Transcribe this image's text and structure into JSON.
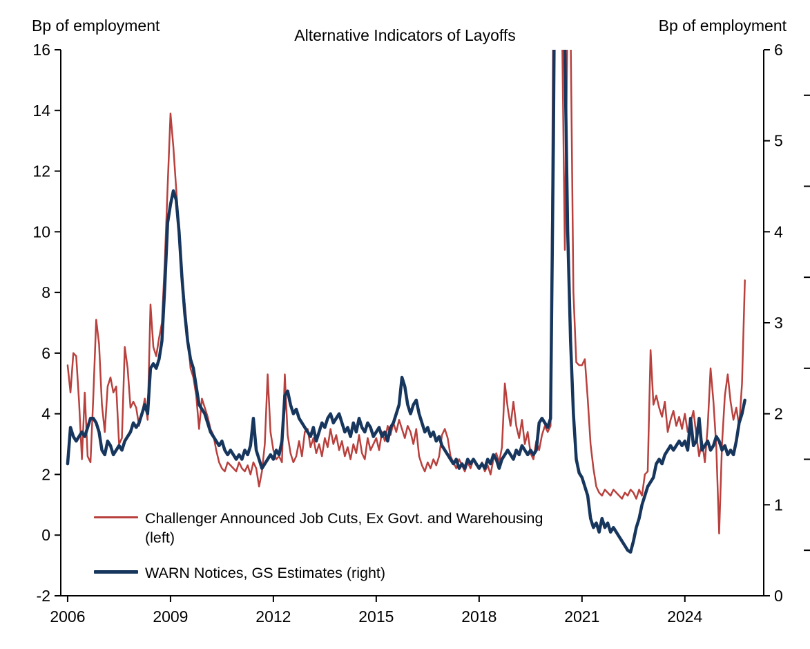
{
  "title": "Alternative Indicators of Layoffs",
  "left_axis_units": "Bp of employment",
  "right_axis_units": "Bp of employment",
  "chart_data": {
    "type": "line",
    "title": "Alternative Indicators of Layoffs",
    "grid": false,
    "legend_position": "lower-left",
    "xlim": [
      2005.8,
      2026.3
    ],
    "x_ticks": [
      2006,
      2009,
      2012,
      2015,
      2018,
      2021,
      2024
    ],
    "x_start": 2006.0,
    "x_step_years": 0.0833333,
    "left_ylim": [
      -2,
      16
    ],
    "left_yticks": [
      16,
      14,
      12,
      10,
      8,
      6,
      4,
      2,
      0,
      -2
    ],
    "left_axis_label": "Bp of employment",
    "right_ylim": [
      0,
      6
    ],
    "right_yticks": [
      6,
      5,
      4,
      3,
      2,
      1,
      0
    ],
    "right_axis_label": "Bp of employment",
    "right_edge_marks": [
      5.5,
      4.5,
      3.5,
      2.5,
      1.5,
      0.5
    ],
    "series": [
      {
        "name": "Challenger Announced Job Cuts, Ex Govt. and Warehousing (left)",
        "axis": "left",
        "color": "#b8403d",
        "width": 2.5,
        "values": [
          5.6,
          4.7,
          6.0,
          5.9,
          4.4,
          2.5,
          4.7,
          2.6,
          2.4,
          4.6,
          7.1,
          6.3,
          4.3,
          3.4,
          4.9,
          5.2,
          4.7,
          4.9,
          3.0,
          3.2,
          6.2,
          5.5,
          4.2,
          4.4,
          4.2,
          3.6,
          4.0,
          4.5,
          3.8,
          7.6,
          6.2,
          5.9,
          6.5,
          7.0,
          9.0,
          11.5,
          13.9,
          12.8,
          11.4,
          10.0,
          8.6,
          7.6,
          6.6,
          5.5,
          5.2,
          4.6,
          3.5,
          4.5,
          4.2,
          3.9,
          3.5,
          3.3,
          2.8,
          2.4,
          2.2,
          2.1,
          2.4,
          2.3,
          2.2,
          2.1,
          2.4,
          2.2,
          2.1,
          2.3,
          2.0,
          2.4,
          2.2,
          1.6,
          2.1,
          3.0,
          5.3,
          3.4,
          2.8,
          2.5,
          2.6,
          2.4,
          5.3,
          3.3,
          2.7,
          2.4,
          2.6,
          3.1,
          2.6,
          3.4,
          3.5,
          2.9,
          3.2,
          2.7,
          3.0,
          2.6,
          3.2,
          2.9,
          3.5,
          3.0,
          3.3,
          2.8,
          3.1,
          2.6,
          2.9,
          2.5,
          3.0,
          2.7,
          3.3,
          2.7,
          2.5,
          3.2,
          2.8,
          3.0,
          3.2,
          2.8,
          3.4,
          3.1,
          3.6,
          3.3,
          3.7,
          3.4,
          3.8,
          3.5,
          3.2,
          3.6,
          3.4,
          3.0,
          3.5,
          2.6,
          2.3,
          2.1,
          2.4,
          2.2,
          2.5,
          2.3,
          2.6,
          3.3,
          3.5,
          3.2,
          2.6,
          2.4,
          2.2,
          2.5,
          2.3,
          2.1,
          2.4,
          2.2,
          2.5,
          2.3,
          2.2,
          2.4,
          2.1,
          2.3,
          2.0,
          2.5,
          2.7,
          2.4,
          2.9,
          5.0,
          4.2,
          3.6,
          4.4,
          3.6,
          3.2,
          3.8,
          3.0,
          3.4,
          2.7,
          2.5,
          3.1,
          2.8,
          3.3,
          3.6,
          3.4,
          3.6,
          18.0,
          30.0,
          22.0,
          17.0,
          9.4,
          17.5,
          16.8,
          8.0,
          5.7,
          5.6,
          5.6,
          5.8,
          4.5,
          3.0,
          2.2,
          1.6,
          1.4,
          1.3,
          1.5,
          1.4,
          1.3,
          1.5,
          1.4,
          1.3,
          1.2,
          1.4,
          1.3,
          1.5,
          1.4,
          1.2,
          1.5,
          1.3,
          2.0,
          2.1,
          6.1,
          4.3,
          4.6,
          4.2,
          3.9,
          4.4,
          3.4,
          3.8,
          4.1,
          3.6,
          3.9,
          3.5,
          4.0,
          3.4,
          3.7,
          4.1,
          3.3,
          2.6,
          3.1,
          2.4,
          3.6,
          5.5,
          4.4,
          2.9,
          0.05,
          3.0,
          4.6,
          5.3,
          4.4,
          3.8,
          4.2,
          3.6,
          5.0,
          8.4
        ]
      },
      {
        "name": "WARN Notices, GS Estimates (right)",
        "axis": "right",
        "color": "#17365d",
        "width": 4.5,
        "values": [
          1.45,
          1.85,
          1.75,
          1.7,
          1.75,
          1.8,
          1.75,
          1.85,
          1.95,
          1.95,
          1.9,
          1.8,
          1.6,
          1.55,
          1.7,
          1.65,
          1.55,
          1.6,
          1.65,
          1.6,
          1.7,
          1.75,
          1.8,
          1.9,
          1.85,
          1.9,
          2.0,
          2.1,
          2.0,
          2.5,
          2.55,
          2.5,
          2.6,
          2.8,
          3.4,
          4.1,
          4.3,
          4.45,
          4.35,
          4.0,
          3.5,
          3.1,
          2.8,
          2.6,
          2.5,
          2.3,
          2.1,
          2.05,
          2.0,
          1.9,
          1.8,
          1.75,
          1.7,
          1.65,
          1.7,
          1.6,
          1.55,
          1.6,
          1.55,
          1.5,
          1.55,
          1.5,
          1.6,
          1.55,
          1.65,
          1.95,
          1.6,
          1.5,
          1.4,
          1.45,
          1.5,
          1.55,
          1.5,
          1.6,
          1.55,
          1.7,
          2.2,
          2.25,
          2.1,
          2.0,
          2.05,
          1.95,
          1.9,
          1.85,
          1.8,
          1.75,
          1.85,
          1.7,
          1.8,
          1.9,
          1.85,
          1.95,
          2.0,
          1.9,
          1.95,
          2.0,
          1.9,
          1.8,
          1.85,
          1.75,
          1.9,
          1.8,
          1.95,
          1.85,
          1.8,
          1.9,
          1.85,
          1.75,
          1.8,
          1.85,
          1.75,
          1.8,
          1.7,
          1.85,
          1.9,
          2.0,
          2.1,
          2.4,
          2.3,
          2.1,
          2.0,
          2.1,
          2.15,
          2.0,
          1.9,
          1.8,
          1.85,
          1.75,
          1.8,
          1.7,
          1.75,
          1.65,
          1.6,
          1.55,
          1.5,
          1.45,
          1.5,
          1.4,
          1.45,
          1.4,
          1.5,
          1.45,
          1.5,
          1.45,
          1.4,
          1.45,
          1.4,
          1.5,
          1.45,
          1.55,
          1.5,
          1.4,
          1.5,
          1.55,
          1.6,
          1.55,
          1.5,
          1.6,
          1.55,
          1.65,
          1.6,
          1.55,
          1.6,
          1.55,
          1.6,
          1.9,
          1.95,
          1.9,
          1.85,
          1.95,
          5.0,
          9.5,
          9.0,
          8.0,
          6.0,
          4.0,
          2.8,
          2.0,
          1.5,
          1.35,
          1.3,
          1.2,
          1.1,
          0.85,
          0.75,
          0.8,
          0.7,
          0.85,
          0.75,
          0.8,
          0.7,
          0.75,
          0.7,
          0.65,
          0.6,
          0.55,
          0.5,
          0.48,
          0.6,
          0.75,
          0.85,
          1.0,
          1.1,
          1.2,
          1.25,
          1.3,
          1.45,
          1.5,
          1.45,
          1.55,
          1.6,
          1.65,
          1.6,
          1.65,
          1.7,
          1.65,
          1.7,
          1.6,
          1.95,
          1.65,
          1.7,
          1.95,
          1.6,
          1.65,
          1.7,
          1.6,
          1.65,
          1.75,
          1.7,
          1.6,
          1.65,
          1.55,
          1.6,
          1.55,
          1.7,
          1.9,
          2.0,
          2.15
        ]
      }
    ]
  }
}
